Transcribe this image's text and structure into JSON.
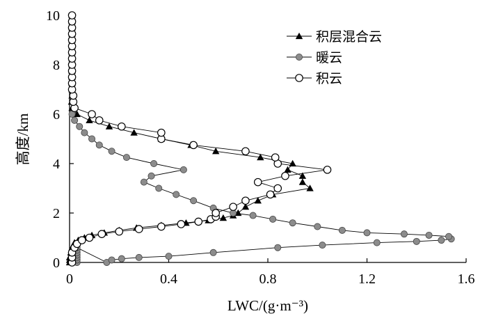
{
  "chart_data": {
    "type": "line",
    "xlabel": "LWC/(g·m⁻³)",
    "ylabel": "高度/km",
    "xlim": [
      0,
      1.6
    ],
    "ylim": [
      0,
      10
    ],
    "xticks": [
      "0",
      "0.4",
      "0.8",
      "1.2",
      "1.6"
    ],
    "yticks": [
      "0",
      "2",
      "4",
      "6",
      "8",
      "10"
    ],
    "legend_position": "top-right",
    "grid": false,
    "series": [
      {
        "name": "积层混合云",
        "marker": "filled-triangle",
        "points": [
          [
            0.0,
            0.0
          ],
          [
            0.0,
            0.1
          ],
          [
            0.0,
            0.2
          ],
          [
            0.005,
            0.3
          ],
          [
            0.005,
            0.4
          ],
          [
            0.008,
            0.5
          ],
          [
            0.01,
            0.6
          ],
          [
            0.015,
            0.7
          ],
          [
            0.02,
            0.8
          ],
          [
            0.035,
            0.9
          ],
          [
            0.06,
            1.0
          ],
          [
            0.09,
            1.1
          ],
          [
            0.14,
            1.2
          ],
          [
            0.2,
            1.3
          ],
          [
            0.27,
            1.4
          ],
          [
            0.37,
            1.5
          ],
          [
            0.47,
            1.6
          ],
          [
            0.56,
            1.7
          ],
          [
            0.62,
            1.8
          ],
          [
            0.66,
            1.9
          ],
          [
            0.68,
            2.0
          ],
          [
            0.71,
            2.25
          ],
          [
            0.76,
            2.5
          ],
          [
            0.82,
            2.75
          ],
          [
            0.97,
            3.0
          ],
          [
            0.94,
            3.25
          ],
          [
            0.94,
            3.5
          ],
          [
            0.88,
            3.75
          ],
          [
            0.9,
            4.0
          ],
          [
            0.77,
            4.25
          ],
          [
            0.59,
            4.5
          ],
          [
            0.49,
            4.75
          ],
          [
            0.37,
            5.0
          ],
          [
            0.26,
            5.25
          ],
          [
            0.16,
            5.5
          ],
          [
            0.08,
            5.75
          ],
          [
            0.03,
            6.0
          ],
          [
            0.01,
            6.25
          ],
          [
            0.008,
            6.5
          ],
          [
            0.01,
            6.75
          ],
          [
            0.01,
            7.0
          ],
          [
            0.01,
            7.25
          ],
          [
            0.01,
            7.5
          ],
          [
            0.01,
            7.75
          ],
          [
            0.01,
            8.0
          ],
          [
            0.01,
            8.25
          ],
          [
            0.01,
            8.5
          ],
          [
            0.01,
            8.75
          ],
          [
            0.01,
            9.0
          ],
          [
            0.01,
            9.25
          ],
          [
            0.01,
            9.5
          ],
          [
            0.01,
            9.75
          ],
          [
            0.01,
            10.0
          ]
        ]
      },
      {
        "name": "暖云",
        "marker": "filled-circle",
        "points": [
          [
            0.03,
            0.0
          ],
          [
            0.03,
            0.1
          ],
          [
            0.03,
            0.2
          ],
          [
            0.03,
            0.3
          ],
          [
            0.03,
            0.4
          ],
          [
            0.03,
            0.5
          ],
          [
            0.03,
            0.6
          ],
          [
            0.15,
            0.0
          ],
          [
            0.17,
            0.1
          ],
          [
            0.21,
            0.15
          ],
          [
            0.28,
            0.2
          ],
          [
            0.4,
            0.25
          ],
          [
            0.58,
            0.4
          ],
          [
            0.84,
            0.6
          ],
          [
            1.02,
            0.7
          ],
          [
            1.24,
            0.8
          ],
          [
            1.4,
            0.85
          ],
          [
            1.5,
            0.9
          ],
          [
            1.54,
            0.95
          ],
          [
            1.53,
            1.05
          ],
          [
            1.45,
            1.1
          ],
          [
            1.35,
            1.15
          ],
          [
            1.2,
            1.2
          ],
          [
            1.1,
            1.3
          ],
          [
            1.0,
            1.45
          ],
          [
            0.9,
            1.6
          ],
          [
            0.82,
            1.75
          ],
          [
            0.74,
            1.9
          ],
          [
            0.66,
            2.0
          ],
          [
            0.58,
            2.2
          ],
          [
            0.5,
            2.5
          ],
          [
            0.43,
            2.75
          ],
          [
            0.36,
            3.0
          ],
          [
            0.3,
            3.25
          ],
          [
            0.33,
            3.5
          ],
          [
            0.46,
            3.75
          ],
          [
            0.34,
            4.0
          ],
          [
            0.23,
            4.25
          ],
          [
            0.17,
            4.5
          ],
          [
            0.12,
            4.75
          ],
          [
            0.09,
            5.0
          ],
          [
            0.06,
            5.25
          ],
          [
            0.04,
            5.5
          ],
          [
            0.02,
            5.75
          ],
          [
            0.01,
            6.0
          ]
        ]
      },
      {
        "name": "积云",
        "marker": "open-circle",
        "points": [
          [
            0.01,
            0.0
          ],
          [
            0.01,
            0.2
          ],
          [
            0.01,
            0.4
          ],
          [
            0.02,
            0.6
          ],
          [
            0.03,
            0.75
          ],
          [
            0.05,
            0.9
          ],
          [
            0.08,
            1.0
          ],
          [
            0.13,
            1.15
          ],
          [
            0.2,
            1.25
          ],
          [
            0.28,
            1.35
          ],
          [
            0.37,
            1.45
          ],
          [
            0.45,
            1.55
          ],
          [
            0.52,
            1.65
          ],
          [
            0.57,
            1.75
          ],
          [
            0.59,
            1.85
          ],
          [
            0.59,
            2.0
          ],
          [
            0.66,
            2.25
          ],
          [
            0.71,
            2.5
          ],
          [
            0.81,
            2.75
          ],
          [
            0.84,
            3.0
          ],
          [
            0.76,
            3.25
          ],
          [
            0.87,
            3.5
          ],
          [
            1.04,
            3.75
          ],
          [
            0.84,
            4.0
          ],
          [
            0.83,
            4.25
          ],
          [
            0.71,
            4.5
          ],
          [
            0.5,
            4.75
          ],
          [
            0.37,
            5.0
          ],
          [
            0.37,
            5.25
          ],
          [
            0.21,
            5.5
          ],
          [
            0.12,
            5.75
          ],
          [
            0.09,
            6.0
          ],
          [
            0.02,
            6.25
          ],
          [
            0.015,
            6.5
          ],
          [
            0.015,
            6.75
          ],
          [
            0.01,
            7.0
          ],
          [
            0.01,
            7.25
          ],
          [
            0.01,
            7.5
          ],
          [
            0.01,
            7.75
          ],
          [
            0.01,
            8.0
          ],
          [
            0.01,
            8.25
          ],
          [
            0.01,
            8.5
          ],
          [
            0.01,
            8.75
          ],
          [
            0.01,
            9.0
          ],
          [
            0.01,
            9.25
          ],
          [
            0.01,
            9.5
          ],
          [
            0.01,
            9.75
          ],
          [
            0.01,
            10.0
          ]
        ]
      }
    ]
  }
}
